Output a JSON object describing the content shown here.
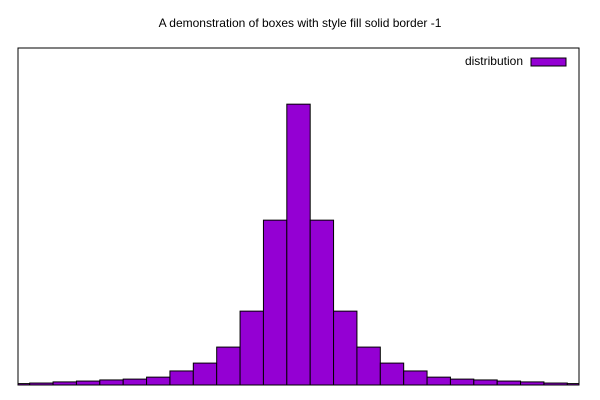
{
  "chart_data": {
    "type": "boxes",
    "title": "A demonstration of boxes with style fill solid border -1",
    "x": [
      -12,
      -11,
      -10,
      -9,
      -8,
      -7,
      -6,
      -5,
      -4,
      -3,
      -2,
      -1,
      0,
      1,
      2,
      3,
      4,
      5,
      6,
      7,
      8,
      9,
      10,
      11,
      12
    ],
    "series": [
      {
        "name": "distribution",
        "color": "#9400d3",
        "values": [
          0.05,
          0.07,
          0.11,
          0.14,
          0.18,
          0.21,
          0.28,
          0.5,
          0.78,
          1.35,
          2.63,
          5.87,
          10,
          5.87,
          2.63,
          1.35,
          0.78,
          0.5,
          0.28,
          0.21,
          0.18,
          0.14,
          0.11,
          0.07,
          0.05
        ]
      }
    ],
    "xlim": [
      -12,
      12
    ],
    "ylim": [
      0,
      12
    ],
    "legend": "top-right",
    "border": "black"
  }
}
